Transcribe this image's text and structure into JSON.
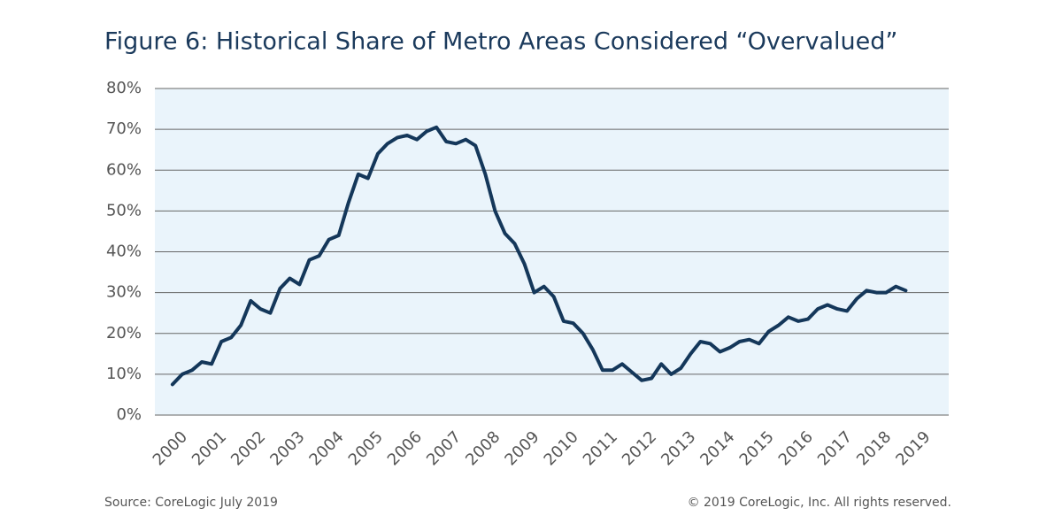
{
  "chart_data": {
    "type": "line",
    "title": "Figure 6: Historical Share of Metro Areas Considered “Overvalued”",
    "source": "Source: CoreLogic July 2019",
    "copyright": "© 2019 CoreLogic, Inc. All rights reserved.",
    "x": [
      2000,
      2000.25,
      2000.5,
      2000.75,
      2001,
      2001.25,
      2001.5,
      2001.75,
      2002,
      2002.25,
      2002.5,
      2002.75,
      2003,
      2003.25,
      2003.5,
      2003.75,
      2004,
      2004.25,
      2004.5,
      2004.75,
      2005,
      2005.25,
      2005.5,
      2005.75,
      2006,
      2006.25,
      2006.5,
      2006.75,
      2007,
      2007.25,
      2007.5,
      2007.75,
      2008,
      2008.25,
      2008.5,
      2008.75,
      2009,
      2009.25,
      2009.5,
      2009.75,
      2010,
      2010.25,
      2010.5,
      2010.75,
      2011,
      2011.25,
      2011.5,
      2011.75,
      2012,
      2012.25,
      2012.5,
      2012.75,
      2013,
      2013.25,
      2013.5,
      2013.75,
      2014,
      2014.25,
      2014.5,
      2014.75,
      2015,
      2015.25,
      2015.5,
      2015.75,
      2016,
      2016.25,
      2016.5,
      2016.75,
      2017,
      2017.25,
      2017.5,
      2017.75,
      2018,
      2018.25,
      2018.5,
      2018.75
    ],
    "series": [
      {
        "color": "#14375a",
        "values": [
          7.5,
          10,
          11,
          13,
          12.5,
          18,
          19,
          22,
          28,
          26,
          25,
          31,
          33.5,
          32,
          38,
          39,
          43,
          44,
          52,
          59,
          58,
          64,
          66.5,
          68,
          68.5,
          67.5,
          69.5,
          70.5,
          67,
          66.5,
          67.5,
          66,
          59,
          50,
          44.5,
          42,
          37,
          30,
          31.5,
          29,
          23,
          22.5,
          20,
          16,
          11,
          11,
          12.5,
          10.5,
          8.5,
          9,
          12.5,
          10,
          11.5,
          15,
          18,
          17.5,
          15.5,
          16.5,
          18,
          18.5,
          17.5,
          20.5,
          22,
          24,
          23,
          23.5,
          26,
          27,
          26,
          25.5,
          28.5,
          30.5,
          30,
          30,
          31.5,
          30.5
        ]
      }
    ],
    "xlim": [
      1999.55,
      2019.85
    ],
    "xticks": [
      2000,
      2001,
      2002,
      2003,
      2004,
      2005,
      2006,
      2007,
      2008,
      2009,
      2010,
      2011,
      2012,
      2013,
      2014,
      2015,
      2016,
      2017,
      2018,
      2019
    ],
    "ylim": [
      0,
      80
    ],
    "yticks": [
      {
        "value": 0,
        "label": "0%"
      },
      {
        "value": 10,
        "label": "10%"
      },
      {
        "value": 20,
        "label": "20%"
      },
      {
        "value": 30,
        "label": "30%"
      },
      {
        "value": 40,
        "label": "40%"
      },
      {
        "value": 50,
        "label": "50%"
      },
      {
        "value": 60,
        "label": "60%"
      },
      {
        "value": 70,
        "label": "70%"
      },
      {
        "value": 80,
        "label": "80%"
      }
    ],
    "grid": true
  }
}
